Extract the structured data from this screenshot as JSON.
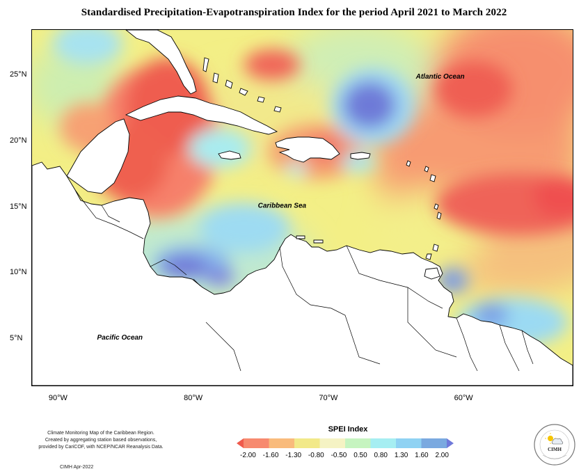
{
  "title": "Standardised Precipitation-Evapotranspiration Index for the period April 2021 to March 2022",
  "map": {
    "lon_range": [
      -92,
      -52
    ],
    "lat_range": [
      1.5,
      28.5
    ],
    "lat_ticks": [
      {
        "value": 25,
        "label": "25°N"
      },
      {
        "value": 20,
        "label": "20°N"
      },
      {
        "value": 15,
        "label": "15°N"
      },
      {
        "value": 10,
        "label": "10°N"
      },
      {
        "value": 5,
        "label": "5°N"
      }
    ],
    "lon_ticks": [
      {
        "value": -90,
        "label": "90°W"
      },
      {
        "value": -80,
        "label": "80°W"
      },
      {
        "value": -70,
        "label": "70°W"
      },
      {
        "value": -60,
        "label": "60°W"
      }
    ],
    "ocean_labels": [
      {
        "text": "Atlantic Ocean",
        "lon": -61.8,
        "lat": 24.8
      },
      {
        "text": "Caribbean Sea",
        "lon": -73.5,
        "lat": 15.0
      },
      {
        "text": "Pacific Ocean",
        "lon": -85.5,
        "lat": 5.0
      }
    ],
    "spei_anomalies": [
      {
        "lon": -83.5,
        "lat": 21.0,
        "value": -2.1
      },
      {
        "lon": -83.0,
        "lat": 25.5,
        "value": -1.8
      },
      {
        "lon": -85.0,
        "lat": 17.5,
        "value": -1.5
      },
      {
        "lon": -74.5,
        "lat": 25.2,
        "value": -1.7
      },
      {
        "lon": -71.0,
        "lat": 19.0,
        "value": -1.6
      },
      {
        "lon": -58.0,
        "lat": 24.0,
        "value": -2.0
      },
      {
        "lon": -56.5,
        "lat": 15.0,
        "value": -2.1
      },
      {
        "lon": -66.5,
        "lat": 22.3,
        "value": 2.0
      },
      {
        "lon": -79.0,
        "lat": 9.5,
        "value": 1.7
      },
      {
        "lon": -76.5,
        "lat": 13.5,
        "value": 0.8
      },
      {
        "lon": -60.0,
        "lat": 8.2,
        "value": 1.5
      },
      {
        "lon": -56.0,
        "lat": 4.5,
        "value": 1.2
      },
      {
        "lon": -87.0,
        "lat": 25.5,
        "value": 0.8
      },
      {
        "lon": -60.5,
        "lat": 2.8,
        "value": 1.0
      }
    ],
    "legend_colors": [
      "#ef5a4c",
      "#f78a6f",
      "#f9bb7c",
      "#f2e989",
      "#f5f3c4",
      "#c6f4c0",
      "#a6eef2",
      "#8fd2f3",
      "#7aa9e0",
      "#6f79da"
    ]
  },
  "legend": {
    "title": "SPEI Index",
    "labels": [
      "-2.00",
      "-1.60",
      "-1.30",
      "-0.80",
      "-0.50",
      "0.50",
      "0.80",
      "1.30",
      "1.60",
      "2.00"
    ]
  },
  "credits": {
    "lines": [
      "Climate Monitoring Map of the Caribbean Region.",
      "Created by aggregating station based observations,",
      "provided by CariCOF, with NCEP/NCAR Reanalysis Data."
    ],
    "issued": "CIMH Apr-2022"
  },
  "logo": {
    "text": "CIMH"
  }
}
